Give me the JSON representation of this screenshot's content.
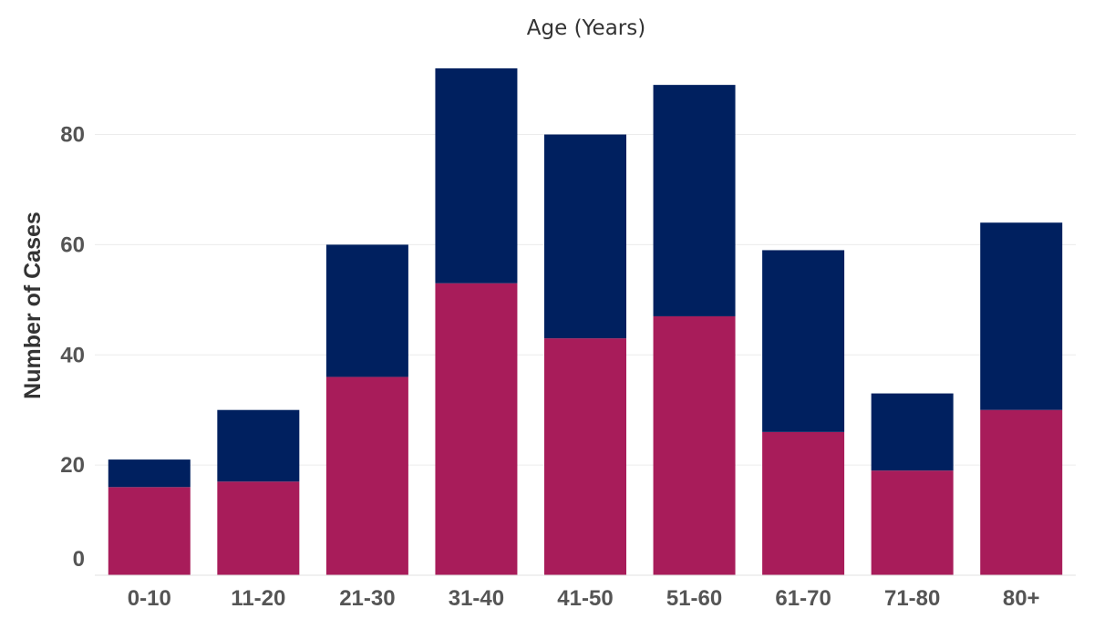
{
  "chart_data": {
    "type": "bar",
    "stacked": true,
    "title": "Age (Years)",
    "xlabel": "",
    "ylabel": "Number of Cases",
    "categories": [
      "0-10",
      "11-20",
      "21-30",
      "31-40",
      "41-50",
      "51-60",
      "61-70",
      "71-80",
      "80+"
    ],
    "series": [
      {
        "color": "#A81C5A",
        "values": [
          16,
          17,
          36,
          53,
          43,
          47,
          26,
          19,
          30
        ]
      },
      {
        "color": "#00205F",
        "values": [
          5,
          13,
          24,
          39,
          37,
          42,
          33,
          14,
          34
        ]
      }
    ],
    "yticks": [
      0,
      20,
      40,
      60,
      80
    ],
    "ylim": [
      0,
      92
    ],
    "grid": true,
    "legend": "none"
  }
}
